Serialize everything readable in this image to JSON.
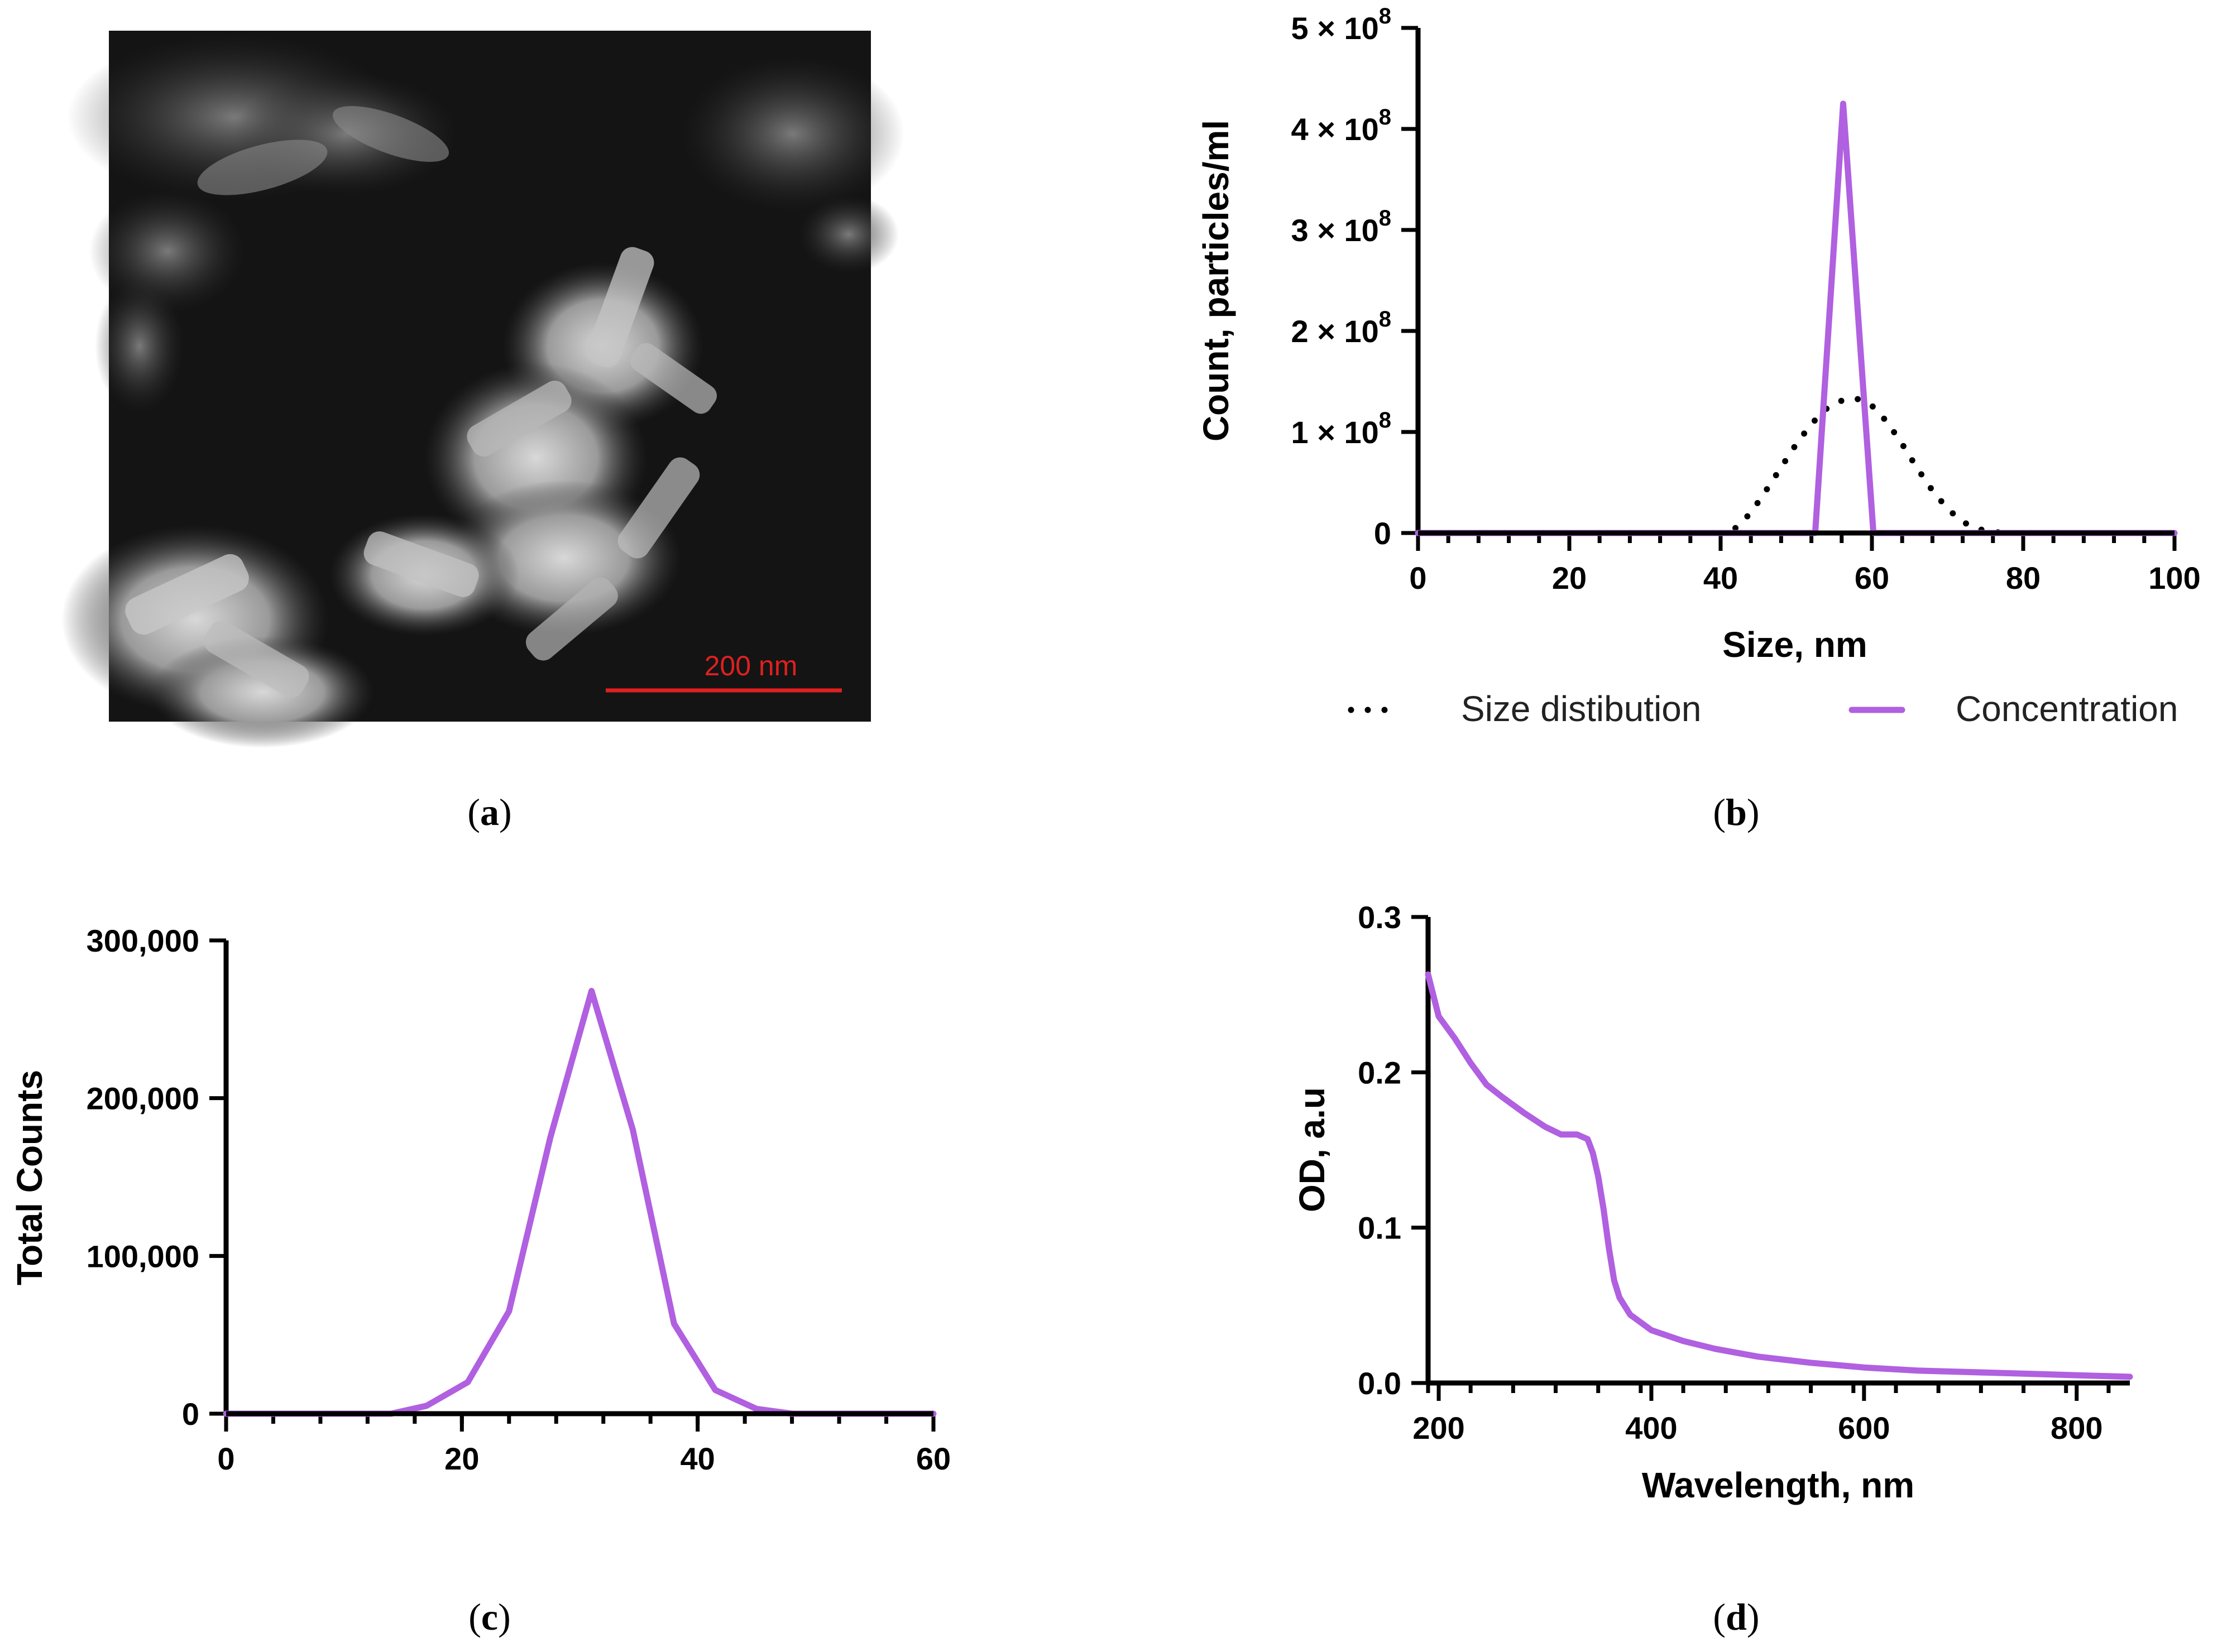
{
  "panels": {
    "a": {
      "label": "a",
      "scale_bar_label": "200 nm"
    },
    "b": {
      "label": "b"
    },
    "c": {
      "label": "c"
    },
    "d": {
      "label": "d"
    }
  },
  "colors": {
    "purple": "#b060e0",
    "black": "#000000",
    "scale_bar": "#e02020"
  },
  "chart_data": [
    {
      "id": "b",
      "type": "line",
      "title": "",
      "xlabel": "Size, nm",
      "ylabel": "Count, particles/ml",
      "xlim": [
        0,
        100
      ],
      "ylim": [
        0,
        500000000
      ],
      "xticks": [
        "0",
        "20",
        "40",
        "60",
        "80",
        "100"
      ],
      "yticks": [
        {
          "value": 0,
          "label": "0"
        },
        {
          "value": 100000000,
          "label": "1 × 10⁸"
        },
        {
          "value": 200000000,
          "label": "2 × 10⁸"
        },
        {
          "value": 300000000,
          "label": "3 × 10⁸"
        },
        {
          "value": 400000000,
          "label": "4 × 10⁸"
        },
        {
          "value": 500000000,
          "label": "5 × 10⁸"
        }
      ],
      "legend_position": "bottom",
      "series": [
        {
          "name": "Size distibution",
          "style": "dotted",
          "x": [
            0,
            40,
            42,
            44,
            46,
            48,
            50,
            52,
            54,
            56,
            58,
            60,
            62,
            64,
            66,
            68,
            70,
            72,
            74,
            76,
            78,
            100
          ],
          "values": [
            0,
            0,
            5000000,
            20000000,
            42000000,
            65000000,
            88000000,
            108000000,
            123000000,
            131000000,
            133000000,
            126000000,
            110000000,
            88000000,
            64000000,
            42000000,
            24000000,
            11000000,
            4000000,
            1000000,
            0,
            0
          ]
        },
        {
          "name": "Concentration",
          "style": "solid",
          "x": [
            0,
            52.5,
            56.2,
            60.2,
            100
          ],
          "values": [
            0,
            0,
            425000000,
            0,
            0
          ]
        }
      ]
    },
    {
      "id": "c",
      "type": "line",
      "title": "",
      "xlabel": "",
      "ylabel": "Total Counts",
      "xlim": [
        0,
        60
      ],
      "ylim": [
        0,
        300000
      ],
      "xticks": [
        "0",
        "20",
        "40",
        "60"
      ],
      "yticks": [
        {
          "value": 0,
          "label": "0"
        },
        {
          "value": 100000,
          "label": "100,000"
        },
        {
          "value": 200000,
          "label": "200,000"
        },
        {
          "value": 300000,
          "label": "300,000"
        }
      ],
      "series": [
        {
          "name": "Total Counts",
          "x": [
            0,
            10,
            14,
            17,
            20.5,
            24,
            27.5,
            31,
            34.5,
            38,
            41.5,
            45,
            48,
            60
          ],
          "values": [
            0,
            0,
            0,
            5000,
            20000,
            65000,
            175000,
            268000,
            180000,
            57000,
            15000,
            3000,
            0,
            0
          ]
        }
      ]
    },
    {
      "id": "d",
      "type": "line",
      "title": "",
      "xlabel": "Wavelength, nm",
      "ylabel": "OD, a.u",
      "xlim": [
        190,
        850
      ],
      "ylim": [
        0,
        0.3
      ],
      "xticks": [
        "200",
        "400",
        "600",
        "800"
      ],
      "yticks": [
        {
          "value": 0,
          "label": "0.0"
        },
        {
          "value": 0.1,
          "label": "0.1"
        },
        {
          "value": 0.2,
          "label": "0.2"
        },
        {
          "value": 0.3,
          "label": "0.3"
        }
      ],
      "series": [
        {
          "name": "OD",
          "x": [
            190,
            200,
            215,
            230,
            245,
            260,
            280,
            300,
            315,
            330,
            340,
            345,
            350,
            355,
            360,
            365,
            370,
            380,
            400,
            430,
            460,
            500,
            550,
            600,
            650,
            700,
            750,
            800,
            850
          ],
          "values": [
            0.263,
            0.236,
            0.222,
            0.206,
            0.192,
            0.184,
            0.174,
            0.165,
            0.16,
            0.16,
            0.157,
            0.148,
            0.133,
            0.112,
            0.087,
            0.066,
            0.055,
            0.044,
            0.034,
            0.027,
            0.022,
            0.017,
            0.013,
            0.01,
            0.008,
            0.007,
            0.006,
            0.005,
            0.004
          ]
        }
      ]
    }
  ]
}
